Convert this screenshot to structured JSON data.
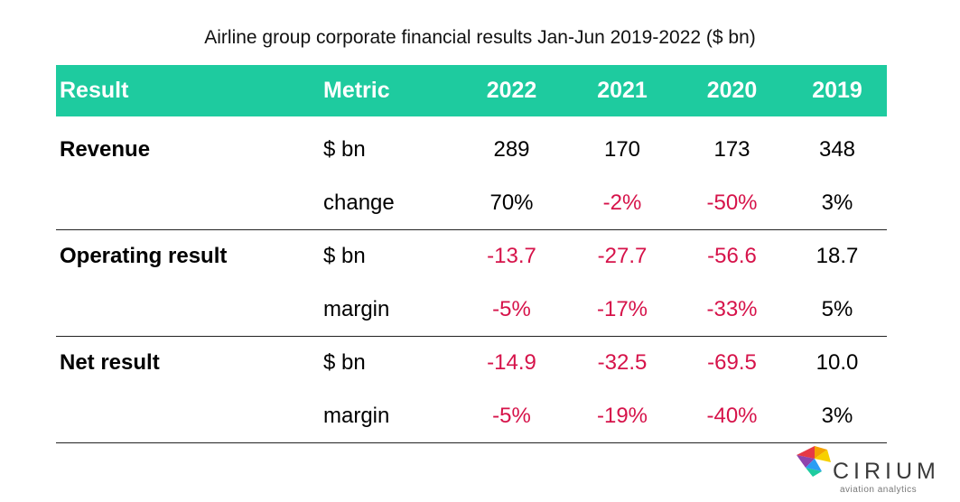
{
  "title": "Airline group corporate financial results Jan-Jun 2019-2022 ($ bn)",
  "headers": [
    "Result",
    "Metric",
    "2022",
    "2021",
    "2020",
    "2019"
  ],
  "rows": [
    {
      "result": "Revenue",
      "metric": "$ bn",
      "values": [
        "289",
        "170",
        "173",
        "348"
      ],
      "negative": [
        false,
        false,
        false,
        false
      ]
    },
    {
      "result": "",
      "metric": "change",
      "values": [
        "70%",
        "-2%",
        "-50%",
        "3%"
      ],
      "negative": [
        false,
        true,
        true,
        false
      ]
    },
    {
      "result": "Operating result",
      "metric": "$ bn",
      "values": [
        "-13.7",
        "-27.7",
        "-56.6",
        "18.7"
      ],
      "negative": [
        true,
        true,
        true,
        false
      ]
    },
    {
      "result": "",
      "metric": "margin",
      "values": [
        "-5%",
        "-17%",
        "-33%",
        "5%"
      ],
      "negative": [
        true,
        true,
        true,
        false
      ]
    },
    {
      "result": "Net result",
      "metric": "$ bn",
      "values": [
        "-14.9",
        "-32.5",
        "-69.5",
        "10.0"
      ],
      "negative": [
        true,
        true,
        true,
        false
      ]
    },
    {
      "result": "",
      "metric": "margin",
      "values": [
        "-5%",
        "-19%",
        "-40%",
        "3%"
      ],
      "negative": [
        true,
        true,
        true,
        false
      ]
    }
  ],
  "colors": {
    "header_bg": "#1ecb9f",
    "negative": "#d6134a"
  },
  "logo": {
    "wordmark": "CIRIUM",
    "tagline": "aviation analytics"
  }
}
